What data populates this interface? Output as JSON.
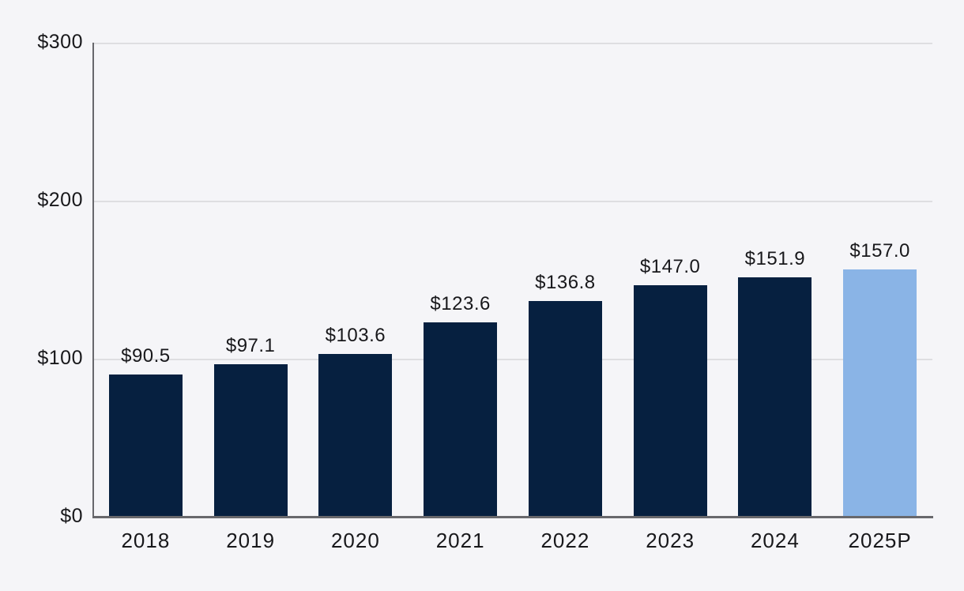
{
  "chart_data": {
    "type": "bar",
    "categories": [
      "2018",
      "2019",
      "2020",
      "2021",
      "2022",
      "2023",
      "2024",
      "2025P"
    ],
    "values": [
      90.5,
      97.1,
      103.6,
      123.6,
      136.8,
      147.0,
      151.9,
      157.0
    ],
    "value_labels": [
      "$90.5",
      "$97.1",
      "$103.6",
      "$123.6",
      "$136.8",
      "$147.0",
      "$151.9",
      "$157.0"
    ],
    "bar_colors": [
      "#062040",
      "#062040",
      "#062040",
      "#062040",
      "#062040",
      "#062040",
      "#062040",
      "#8AB4E6"
    ],
    "highlighted_category": "2025P",
    "title": "",
    "xlabel": "",
    "ylabel": "",
    "ylim": [
      0,
      300
    ],
    "y_ticks": [
      0,
      100,
      200,
      300
    ],
    "y_tick_labels": [
      "$0",
      "$100",
      "$200",
      "$300"
    ],
    "grid": true,
    "legend_position": "none"
  },
  "colors": {
    "background": "#F5F5F8",
    "gridline": "#DEDEE1",
    "axis": "#68686C",
    "text": "#18181B"
  }
}
